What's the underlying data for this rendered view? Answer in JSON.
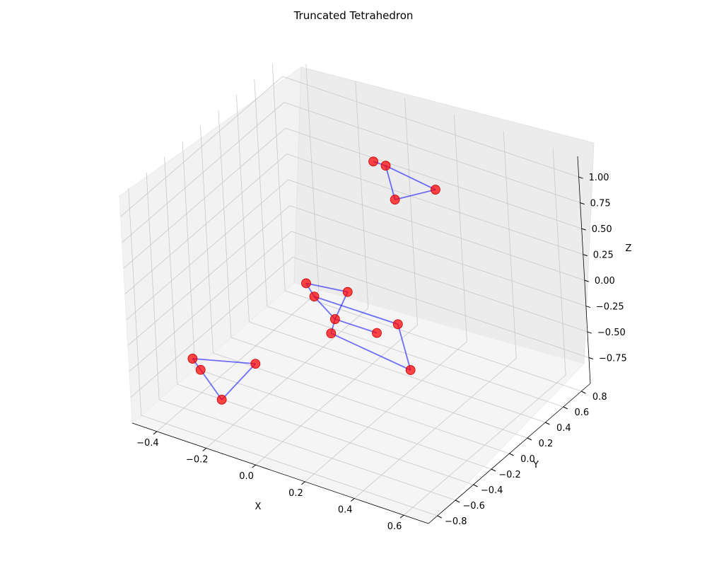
{
  "chart_data": {
    "type": "scatter",
    "projection": "3d",
    "title": "Truncated Tetrahedron",
    "xlabel": "X",
    "ylabel": "Y",
    "zlabel": "Z",
    "x_ticks": [
      "−0.4",
      "−0.2",
      "0.0",
      "0.2",
      "0.4",
      "0.6"
    ],
    "y_ticks": [
      "−0.8",
      "−0.6",
      "−0.4",
      "−0.2",
      "0.0",
      "0.2",
      "0.4",
      "0.6",
      "0.8"
    ],
    "z_ticks": [
      "−0.75",
      "−0.50",
      "−0.25",
      "0.00",
      "0.25",
      "0.50",
      "0.75",
      "1.00"
    ],
    "grid": true,
    "marker_color": "#ff0000",
    "line_color": "#0000ff",
    "points": [
      {
        "x": -0.45,
        "y": -0.35,
        "z": -0.75
      },
      {
        "x": -0.4,
        "y": -0.4,
        "z": -0.78
      },
      {
        "x": -0.25,
        "y": -0.2,
        "z": -0.75
      },
      {
        "x": -0.3,
        "y": -0.45,
        "z": -0.95
      },
      {
        "x": 0.05,
        "y": 0.4,
        "z": 1.0
      },
      {
        "x": 0.1,
        "y": 0.4,
        "z": 1.0
      },
      {
        "x": 0.3,
        "y": 0.4,
        "z": 0.93
      },
      {
        "x": 0.15,
        "y": 0.35,
        "z": 0.75
      },
      {
        "x": -0.1,
        "y": 0.0,
        "z": 0.0
      },
      {
        "x": 0.05,
        "y": 0.05,
        "z": 0.0
      },
      {
        "x": -0.05,
        "y": -0.05,
        "z": -0.05
      },
      {
        "x": 0.25,
        "y": 0.05,
        "z": -0.15
      },
      {
        "x": 0.05,
        "y": -0.1,
        "z": -0.15
      },
      {
        "x": 0.2,
        "y": -0.05,
        "z": -0.2
      },
      {
        "x": 0.05,
        "y": -0.15,
        "z": -0.25
      },
      {
        "x": 0.35,
        "y": -0.1,
        "z": -0.4
      }
    ],
    "edges": [
      [
        0,
        1
      ],
      [
        0,
        2
      ],
      [
        1,
        3
      ],
      [
        2,
        3
      ],
      [
        4,
        5
      ],
      [
        5,
        6
      ],
      [
        5,
        7
      ],
      [
        6,
        7
      ],
      [
        8,
        9
      ],
      [
        8,
        10
      ],
      [
        9,
        12
      ],
      [
        10,
        11
      ],
      [
        10,
        12
      ],
      [
        11,
        15
      ],
      [
        12,
        13
      ],
      [
        12,
        14
      ],
      [
        14,
        15
      ]
    ]
  }
}
